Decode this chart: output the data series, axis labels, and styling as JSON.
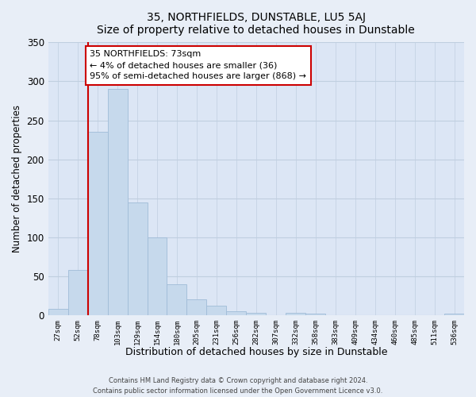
{
  "title": "35, NORTHFIELDS, DUNSTABLE, LU5 5AJ",
  "subtitle": "Size of property relative to detached houses in Dunstable",
  "xlabel": "Distribution of detached houses by size in Dunstable",
  "ylabel": "Number of detached properties",
  "bar_labels": [
    "27sqm",
    "52sqm",
    "78sqm",
    "103sqm",
    "129sqm",
    "154sqm",
    "180sqm",
    "205sqm",
    "231sqm",
    "256sqm",
    "282sqm",
    "307sqm",
    "332sqm",
    "358sqm",
    "383sqm",
    "409sqm",
    "434sqm",
    "460sqm",
    "485sqm",
    "511sqm",
    "536sqm"
  ],
  "bar_values": [
    8,
    58,
    235,
    290,
    145,
    100,
    40,
    20,
    12,
    5,
    3,
    0,
    3,
    2,
    0,
    0,
    0,
    0,
    0,
    0,
    2
  ],
  "bar_color": "#c6d9ec",
  "bar_edge_color": "#a0bcd8",
  "ylim": [
    0,
    350
  ],
  "yticks": [
    0,
    50,
    100,
    150,
    200,
    250,
    300,
    350
  ],
  "red_line_bar_index": 2,
  "annotation_title": "35 NORTHFIELDS: 73sqm",
  "annotation_line1": "← 4% of detached houses are smaller (36)",
  "annotation_line2": "95% of semi-detached houses are larger (868) →",
  "footer_line1": "Contains HM Land Registry data © Crown copyright and database right 2024.",
  "footer_line2": "Contains public sector information licensed under the Open Government Licence v3.0.",
  "background_color": "#e8eef7",
  "plot_bg_color": "#dce6f5",
  "grid_color": "#c0cfe0"
}
